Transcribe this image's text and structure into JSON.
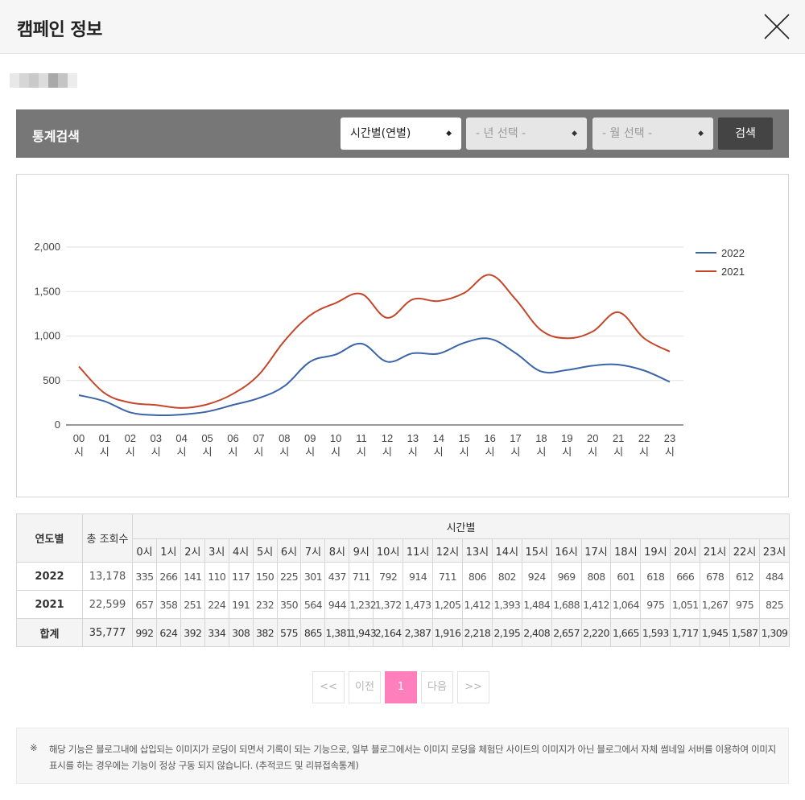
{
  "header": {
    "title": "캠페인 정보"
  },
  "search": {
    "title": "통계검색",
    "type_select": "시간별(연별)",
    "year_select": "- 년 선택 -",
    "month_select": "- 월 선택 -",
    "button": "검색"
  },
  "chart_data": {
    "type": "line",
    "x": [
      "00\n시",
      "01\n시",
      "02\n시",
      "03\n시",
      "04\n시",
      "05\n시",
      "06\n시",
      "07\n시",
      "08\n시",
      "09\n시",
      "10\n시",
      "11\n시",
      "12\n시",
      "13\n시",
      "14\n시",
      "15\n시",
      "16\n시",
      "17\n시",
      "18\n시",
      "19\n시",
      "20\n시",
      "21\n시",
      "22\n시",
      "23\n시"
    ],
    "x_top": [
      "00",
      "01",
      "02",
      "03",
      "04",
      "05",
      "06",
      "07",
      "08",
      "09",
      "10",
      "11",
      "12",
      "13",
      "14",
      "15",
      "16",
      "17",
      "18",
      "19",
      "20",
      "21",
      "22",
      "23"
    ],
    "x_bottom": "시",
    "yticks": [
      "0",
      "500",
      "1,000",
      "1,500",
      "2,000"
    ],
    "ylim": [
      0,
      2000
    ],
    "legend_position": "right",
    "series": [
      {
        "name": "2022",
        "color": "#3c64a8",
        "values": [
          335,
          266,
          141,
          110,
          117,
          150,
          225,
          301,
          437,
          711,
          792,
          914,
          711,
          806,
          802,
          924,
          969,
          808,
          601,
          618,
          666,
          678,
          612,
          484
        ]
      },
      {
        "name": "2021",
        "color": "#c4472a",
        "values": [
          657,
          358,
          251,
          224,
          191,
          232,
          350,
          564,
          944,
          1232,
          1372,
          1473,
          1205,
          1412,
          1393,
          1484,
          1688,
          1412,
          1064,
          975,
          1051,
          1267,
          975,
          825
        ]
      }
    ]
  },
  "table": {
    "col_year": "연도별",
    "col_total": "총 조회수",
    "col_hours": "시간별",
    "hours": [
      "0시",
      "1시",
      "2시",
      "3시",
      "4시",
      "5시",
      "6시",
      "7시",
      "8시",
      "9시",
      "10시",
      "11시",
      "12시",
      "13시",
      "14시",
      "15시",
      "16시",
      "17시",
      "18시",
      "19시",
      "20시",
      "21시",
      "22시",
      "23시"
    ],
    "rows": [
      {
        "year": "2022",
        "total": "13,178",
        "values": [
          "335",
          "266",
          "141",
          "110",
          "117",
          "150",
          "225",
          "301",
          "437",
          "711",
          "792",
          "914",
          "711",
          "806",
          "802",
          "924",
          "969",
          "808",
          "601",
          "618",
          "666",
          "678",
          "612",
          "484"
        ]
      },
      {
        "year": "2021",
        "total": "22,599",
        "values": [
          "657",
          "358",
          "251",
          "224",
          "191",
          "232",
          "350",
          "564",
          "944",
          "1,232",
          "1,372",
          "1,473",
          "1,205",
          "1,412",
          "1,393",
          "1,484",
          "1,688",
          "1,412",
          "1,064",
          "975",
          "1,051",
          "1,267",
          "975",
          "825"
        ]
      },
      {
        "year": "합계",
        "total": "35,777",
        "values": [
          "992",
          "624",
          "392",
          "334",
          "308",
          "382",
          "575",
          "865",
          "1,381",
          "1,943",
          "2,164",
          "2,387",
          "1,916",
          "2,218",
          "2,195",
          "2,408",
          "2,657",
          "2,220",
          "1,665",
          "1,593",
          "1,717",
          "1,945",
          "1,587",
          "1,309"
        ]
      }
    ]
  },
  "pagination": {
    "first": "<<",
    "prev": "이전",
    "current": "1",
    "next": "다음",
    "last": ">>"
  },
  "notice": {
    "mark": "※",
    "text": "해당 기능은 블로그내에 삽입되는 이미지가 로딩이 되면서 기록이 되는 기능으로, 일부 블로그에서는 이미지 로딩을 체험단 사이트의 이미지가 아닌 블로그에서 자체 썸네일 서버를 이용하여 이미지 표시를 하는 경우에는 기능이 정상 구동 되지 않습니다. (추적코드 및 리뷰접속통계)"
  }
}
